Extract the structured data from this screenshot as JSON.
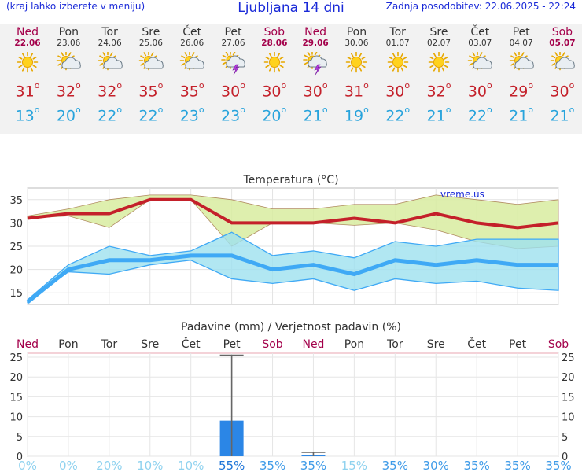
{
  "header": {
    "left_note": "(kraj lahko izberete v meniju)",
    "title": "Ljubljana 14 dni",
    "updated": "Zadnja posodobitev: 22.06.2025 - 22:24"
  },
  "days": [
    {
      "name": "Ned",
      "date": "22.06",
      "weekend": true,
      "icon": "sunny-icon",
      "tmax": "31",
      "tmin": "13"
    },
    {
      "name": "Pon",
      "date": "23.06",
      "weekend": false,
      "icon": "sun-cloud-icon",
      "tmax": "32",
      "tmin": "20"
    },
    {
      "name": "Tor",
      "date": "24.06",
      "weekend": false,
      "icon": "sun-cloud-icon",
      "tmax": "32",
      "tmin": "22"
    },
    {
      "name": "Sre",
      "date": "25.06",
      "weekend": false,
      "icon": "sun-cloud-icon",
      "tmax": "35",
      "tmin": "22"
    },
    {
      "name": "Čet",
      "date": "26.06",
      "weekend": false,
      "icon": "sun-cloud-icon",
      "tmax": "35",
      "tmin": "23"
    },
    {
      "name": "Pet",
      "date": "27.06",
      "weekend": false,
      "icon": "thunderstorm-icon",
      "tmax": "30",
      "tmin": "23"
    },
    {
      "name": "Sob",
      "date": "28.06",
      "weekend": true,
      "icon": "sunny-icon",
      "tmax": "30",
      "tmin": "20"
    },
    {
      "name": "Ned",
      "date": "29.06",
      "weekend": true,
      "icon": "thunderstorm-icon",
      "tmax": "30",
      "tmin": "21"
    },
    {
      "name": "Pon",
      "date": "30.06",
      "weekend": false,
      "icon": "sunny-icon",
      "tmax": "31",
      "tmin": "19"
    },
    {
      "name": "Tor",
      "date": "01.07",
      "weekend": false,
      "icon": "sunny-icon",
      "tmax": "30",
      "tmin": "22"
    },
    {
      "name": "Sre",
      "date": "02.07",
      "weekend": false,
      "icon": "sunny-icon",
      "tmax": "32",
      "tmin": "21"
    },
    {
      "name": "Čet",
      "date": "03.07",
      "weekend": false,
      "icon": "sun-cloud-icon",
      "tmax": "30",
      "tmin": "22"
    },
    {
      "name": "Pet",
      "date": "04.07",
      "weekend": false,
      "icon": "sun-cloud-icon",
      "tmax": "29",
      "tmin": "21"
    },
    {
      "name": "Sob",
      "date": "05.07",
      "weekend": true,
      "icon": "sun-cloud-icon",
      "tmax": "30",
      "tmin": "21"
    }
  ],
  "colors": {
    "header_blue": "#1a2ad8",
    "weekend": "#a3004a",
    "tmax": "#c4202a",
    "tmin": "#27a3dc",
    "max_band": "#d8eca0",
    "min_band": "#9de1ef",
    "min_line": "#3fa9f5",
    "precip_bar": "#2b86e6"
  },
  "chart_data": [
    {
      "type": "line",
      "title": "Temperatura (°C)",
      "watermark": "vreme.us",
      "x": [
        "Ned",
        "Pon",
        "Tor",
        "Sre",
        "Čet",
        "Pet",
        "Sob",
        "Ned",
        "Pon",
        "Tor",
        "Sre",
        "Čet",
        "Pet",
        "Sob"
      ],
      "yticks": [
        15,
        20,
        25,
        30,
        35
      ],
      "ylim": [
        12.5,
        37.5
      ],
      "grid": true,
      "series": [
        {
          "role": "max-mean",
          "values": [
            31,
            32,
            32,
            35,
            35,
            30,
            30,
            30,
            31,
            30,
            32,
            30,
            29,
            30
          ]
        },
        {
          "role": "max-upper",
          "values": [
            31.5,
            33,
            35,
            36,
            36,
            35,
            33,
            33,
            34,
            34,
            36,
            35,
            34,
            35
          ]
        },
        {
          "role": "max-lower",
          "values": [
            31,
            31.5,
            29,
            35,
            35,
            25,
            30,
            30,
            29.5,
            30,
            28.5,
            26,
            24.5,
            25
          ]
        },
        {
          "role": "min-mean",
          "values": [
            13,
            20,
            22,
            22,
            23,
            23,
            20,
            21,
            19,
            22,
            21,
            22,
            21,
            21
          ]
        },
        {
          "role": "min-upper",
          "values": [
            13.5,
            21,
            25,
            23,
            24,
            28,
            23,
            24,
            22.5,
            26,
            25,
            26.5,
            26.5,
            26.5
          ]
        },
        {
          "role": "min-lower",
          "values": [
            13,
            19.5,
            19,
            21,
            22,
            18,
            17,
            18,
            15.5,
            18,
            17,
            17.5,
            16,
            15.5
          ]
        }
      ]
    },
    {
      "type": "bar",
      "title": "Padavine (mm) / Verjetnost padavin (%)",
      "categories": [
        "Ned",
        "Pon",
        "Tor",
        "Sre",
        "Čet",
        "Pet",
        "Sob",
        "Ned",
        "Pon",
        "Tor",
        "Sre",
        "Čet",
        "Pet",
        "Sob"
      ],
      "values": [
        0,
        0,
        0,
        0,
        0,
        9,
        0,
        0.3,
        0,
        0,
        0,
        0,
        0,
        0
      ],
      "error_high": [
        0,
        0,
        0,
        0,
        0,
        25.5,
        0,
        1,
        0,
        0,
        0,
        0,
        0,
        0
      ],
      "probability": [
        "0%",
        "0%",
        "20%",
        "10%",
        "10%",
        "55%",
        "35%",
        "35%",
        "15%",
        "35%",
        "30%",
        "35%",
        "35%",
        "35%"
      ],
      "yticks": [
        0,
        5,
        10,
        15,
        20,
        25
      ],
      "ylim": [
        0,
        26
      ]
    }
  ]
}
